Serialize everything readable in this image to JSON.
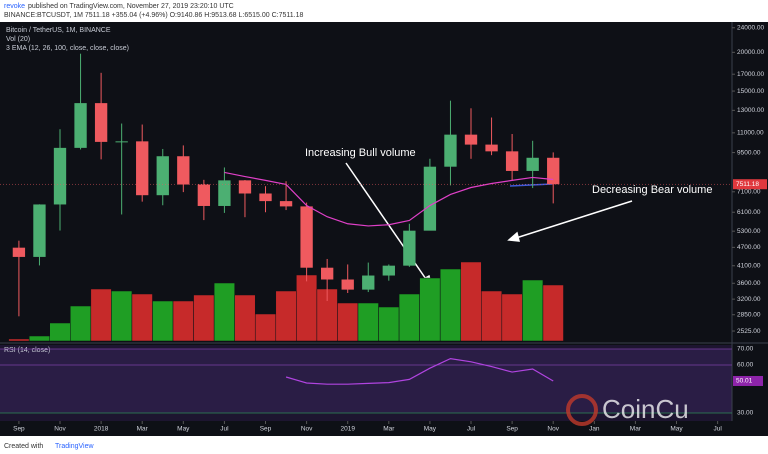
{
  "header": {
    "author": "revoke",
    "published": "published on TradingView.com, November 27, 2019 23:20:10 UTC",
    "symbol_line": "BINANCE:BTCUSDT, 1M 7511.18 +355.04 (+4.96%) O:9140.86 H:9513.68 L:6515.00 C:7511.18"
  },
  "footer": {
    "created": "Created with",
    "brand": "TradingView"
  },
  "watermark": "CoinCu",
  "chart_data": {
    "type": "candlestick",
    "title": "Bitcoin / TetherUS, 1M, BINANCE",
    "indicators": [
      "Vol (20)",
      "3 EMA (12, 26, 100, close, close, close)"
    ],
    "annotations": [
      "Increasing Bull volume",
      "Decreasing Bear volume"
    ],
    "log_scale": true,
    "up_color": "#4caf72",
    "down_color": "#ef5a5f",
    "volume_up_color": "#1f9e24",
    "volume_down_color": "#c62a2a",
    "x": [
      0,
      1,
      2,
      3,
      4,
      5,
      6,
      7,
      8,
      9,
      10,
      11,
      12,
      13,
      14,
      15,
      16,
      17,
      18,
      19,
      20,
      21,
      22,
      23,
      24,
      25,
      26
    ],
    "open": [
      4689,
      4378,
      6463,
      9838,
      13716,
      10285,
      10326,
      6923,
      9246,
      7494,
      6391,
      7730,
      7011,
      6626,
      6371,
      4041,
      3702,
      3434,
      3813,
      4103,
      5320,
      8555,
      10854,
      10080,
      9588,
      8289,
      9140.86
    ],
    "high": [
      4939,
      6470,
      11300,
      19798,
      17176,
      11786,
      11700,
      9759,
      10020,
      7760,
      8507,
      7750,
      7402,
      7680,
      6555,
      4312,
      4140,
      4198,
      4140,
      5600,
      9074,
      13970,
      13200,
      12325,
      10905,
      10370,
      9513.68
    ],
    "low": [
      2817,
      4110,
      5325,
      9722,
      9035,
      6000,
      6600,
      6425,
      7084,
      5755,
      6070,
      5880,
      6100,
      6200,
      3652,
      3156,
      3349,
      3373,
      3670,
      4067,
      5350,
      7444,
      9071,
      9320,
      7710,
      7300,
      6515
    ],
    "close": [
      4378,
      6463,
      9838,
      13716,
      10285,
      10326,
      6923,
      9246,
      7494,
      6391,
      7730,
      7011,
      6626,
      6371,
      4041,
      3702,
      3434,
      3813,
      4103,
      5320,
      8555,
      10854,
      10080,
      9588,
      8289,
      9140.86,
      7511.18
    ],
    "volume": [
      2,
      5,
      18,
      35,
      52,
      50,
      47,
      40,
      40,
      46,
      58,
      46,
      27,
      50,
      66,
      52,
      38,
      38,
      34,
      47,
      63,
      72,
      79,
      50,
      47,
      61,
      56
    ],
    "ema": {
      "color": "#e040c8",
      "values": [
        null,
        null,
        null,
        null,
        null,
        null,
        null,
        null,
        null,
        null,
        8200,
        7950,
        7730,
        7500,
        6410,
        5900,
        5600,
        5510,
        5560,
        5740,
        6410,
        6960,
        7330,
        7550,
        7730,
        7900,
        7780
      ]
    },
    "xlim": [
      -0.92,
      34.7
    ],
    "xticks": [
      {
        "value": 0,
        "label": "Sep"
      },
      {
        "value": 2,
        "label": "Nov"
      },
      {
        "value": 4,
        "label": "2018"
      },
      {
        "value": 6,
        "label": "Mar"
      },
      {
        "value": 8,
        "label": "May"
      },
      {
        "value": 10,
        "label": "Jul"
      },
      {
        "value": 12,
        "label": "Sep"
      },
      {
        "value": 14,
        "label": "Nov"
      },
      {
        "value": 16,
        "label": "2019"
      },
      {
        "value": 18,
        "label": "Mar"
      },
      {
        "value": 20,
        "label": "May"
      },
      {
        "value": 22,
        "label": "Jul"
      },
      {
        "value": 24,
        "label": "Sep"
      },
      {
        "value": 26,
        "label": "Nov"
      },
      {
        "value": 28,
        "label": "Jan"
      },
      {
        "value": 30,
        "label": "Mar"
      },
      {
        "value": 32,
        "label": "May"
      },
      {
        "value": 34,
        "label": "Jul"
      }
    ],
    "ylim": [
      2345,
      25050
    ],
    "yticks": [
      {
        "value": 24000,
        "label": "24000.00"
      },
      {
        "value": 20000,
        "label": "20000.00"
      },
      {
        "value": 17000,
        "label": "17000.00"
      },
      {
        "value": 15000,
        "label": "15000.00"
      },
      {
        "value": 13000,
        "label": "13000.00"
      },
      {
        "value": 11000,
        "label": "11000.00"
      },
      {
        "value": 9500,
        "label": "9500.00"
      },
      {
        "value": 7100,
        "label": "7100.00"
      },
      {
        "value": 6100,
        "label": "6100.00"
      },
      {
        "value": 5300,
        "label": "5300.00"
      },
      {
        "value": 4700,
        "label": "4700.00"
      },
      {
        "value": 4100,
        "label": "4100.00"
      },
      {
        "value": 3600,
        "label": "3600.00"
      },
      {
        "value": 3200,
        "label": "3200.00"
      },
      {
        "value": 2850,
        "label": "2850.00"
      },
      {
        "value": 2525,
        "label": "2525.00"
      }
    ],
    "rsi": {
      "name": "RSI (14, close)",
      "color": "#b044e0",
      "values": [
        null,
        null,
        null,
        null,
        null,
        null,
        null,
        null,
        null,
        null,
        null,
        null,
        null,
        52.5,
        48.75,
        48,
        48,
        48.5,
        49,
        51,
        58,
        64,
        62,
        59,
        55.6,
        57.5,
        50.01
      ],
      "ylim": [
        25,
        72.5
      ],
      "yticks": [
        {
          "value": 70,
          "label": "70.00"
        },
        {
          "value": 60,
          "label": "60.00"
        },
        {
          "value": 30,
          "label": "30.00"
        }
      ]
    }
  }
}
